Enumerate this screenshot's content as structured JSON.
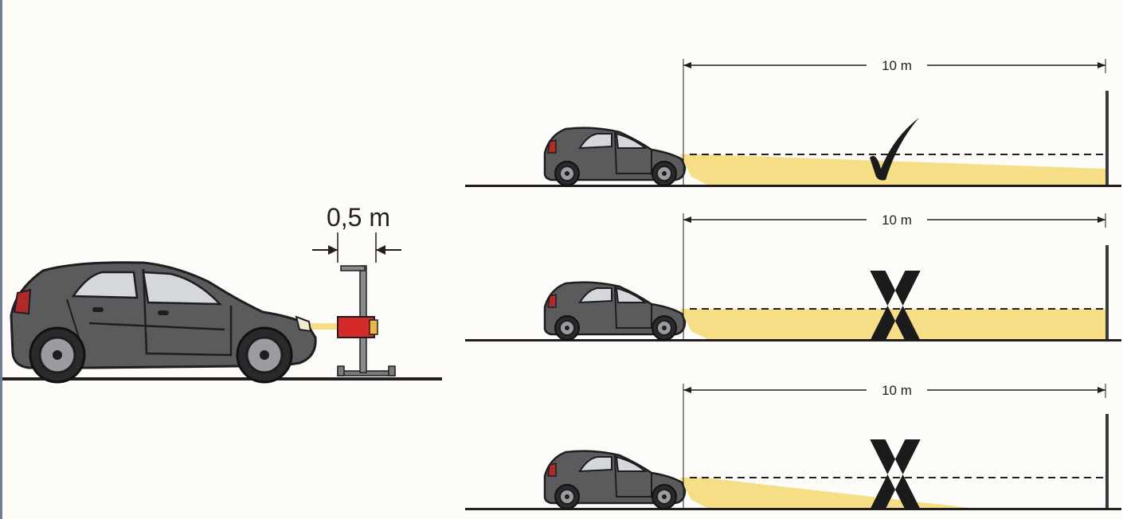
{
  "setup": {
    "distance_label": "0,5 m",
    "device_name": "headlight-aiming-device"
  },
  "scenarios": [
    {
      "distance_label": "10 m",
      "verdict": "correct",
      "beam": "aligned-downward"
    },
    {
      "distance_label": "10 m",
      "verdict": "incorrect",
      "beam": "too-high"
    },
    {
      "distance_label": "10 m",
      "verdict": "incorrect",
      "beam": "too-low"
    }
  ],
  "colors": {
    "background": "#fdfcf8",
    "car_body": "#5b5b5e",
    "car_outline": "#1e1e20",
    "beam": "#f6de87",
    "device_red": "#d42a2a",
    "ground": "#231f20",
    "mark": "#1b1b1b",
    "left_edge": "#6f7d95"
  }
}
